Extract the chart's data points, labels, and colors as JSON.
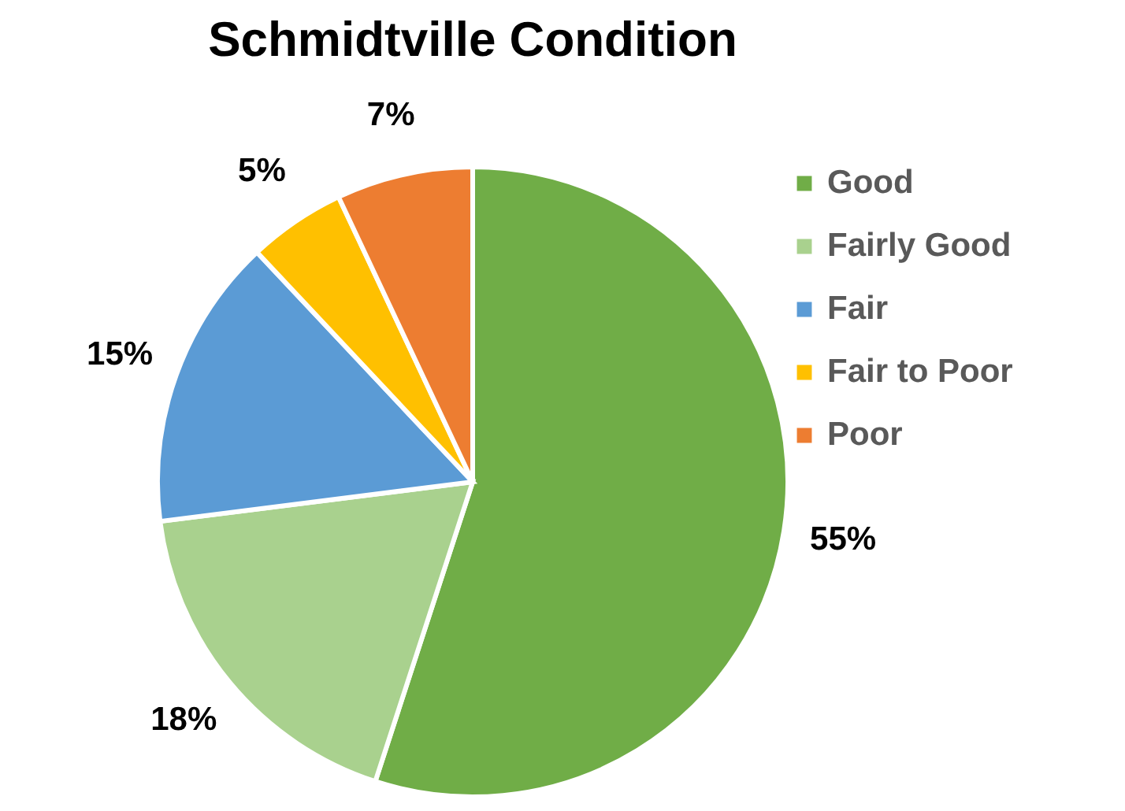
{
  "chart_data": {
    "type": "pie",
    "title": "Schmidtville Condition",
    "categories": [
      "Good",
      "Fairly Good",
      "Fair",
      "Fair to Poor",
      "Poor"
    ],
    "values": [
      55,
      18,
      15,
      5,
      7
    ],
    "colors": [
      "#70ad47",
      "#a9d18e",
      "#5b9bd5",
      "#ffc000",
      "#ed7d31"
    ],
    "value_labels": [
      "55%",
      "18%",
      "15%",
      "5%",
      "7%"
    ],
    "legend": "right"
  }
}
